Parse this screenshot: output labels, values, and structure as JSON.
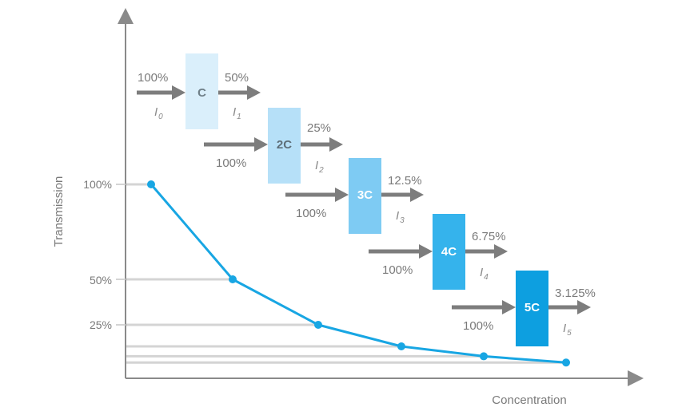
{
  "axes": {
    "y_label": "Transmission",
    "x_label": "Concentration",
    "y_ticks": [
      "100%",
      "50%",
      "25%"
    ]
  },
  "stages": [
    {
      "cell": "C",
      "in": "100%",
      "out": "50%",
      "in_i": "I",
      "in_sub": "0",
      "out_i": "I",
      "out_sub": "1",
      "fill": "#daeffb",
      "text": "#6f7f88"
    },
    {
      "cell": "2C",
      "in": "100%",
      "out": "25%",
      "out_i": "I",
      "out_sub": "2",
      "fill": "#b6e0f8",
      "text": "#5e6e78"
    },
    {
      "cell": "3C",
      "in": "100%",
      "out": "12.5%",
      "out_i": "I",
      "out_sub": "3",
      "fill": "#7ecbf3",
      "text": "#ffffff"
    },
    {
      "cell": "4C",
      "in": "100%",
      "out": "6.75%",
      "out_i": "I",
      "out_sub": "4",
      "fill": "#35b3ec",
      "text": "#ffffff"
    },
    {
      "cell": "5C",
      "in": "100%",
      "out": "3.125%",
      "out_i": "I",
      "out_sub": "5",
      "fill": "#0d9fe0",
      "text": "#ffffff"
    }
  ],
  "curve": {
    "transmission": [
      1.0,
      0.5,
      0.25,
      0.125,
      0.0675,
      0.03125
    ],
    "color": "#18a6e3"
  },
  "colors": {
    "arrow": "#7d7d7d",
    "axis": "#8a8a8a",
    "guide": "#d4d4d4"
  }
}
